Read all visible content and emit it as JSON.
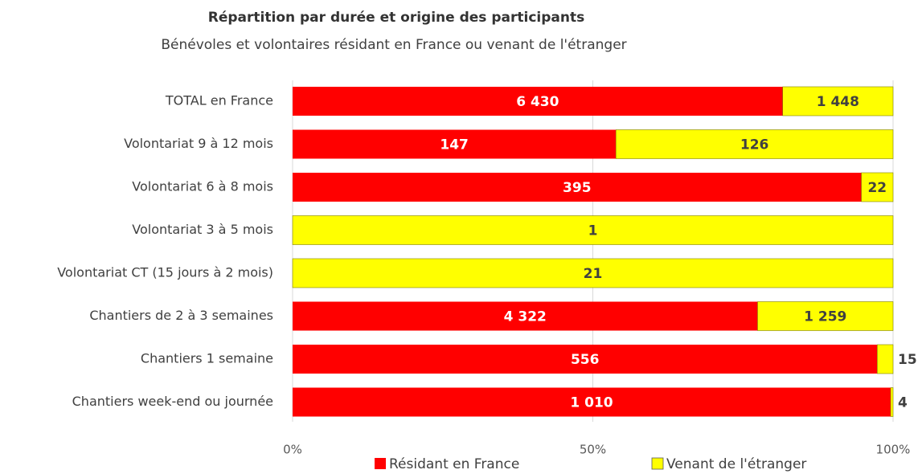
{
  "chart_data": {
    "type": "bar",
    "orientation": "horizontal",
    "stacked": "percent",
    "title": "Répartition par durée et origine des participants",
    "subtitle": "Bénévoles et volontaires résidant en France ou venant de l'étranger",
    "categories": [
      "TOTAL en France",
      "Volontariat 9 à 12 mois",
      "Volontariat 6 à 8 mois",
      "Volontariat 3 à 5 mois ",
      "Volontariat CT  (15 jours à 2 mois)",
      "Chantiers de 2 à 3 semaines ",
      "Chantiers 1 semaine",
      "Chantiers week-end ou journée"
    ],
    "series": [
      {
        "name": "Résidant en France",
        "color": "#ff0000",
        "values": [
          6430,
          147,
          395,
          0,
          0,
          4322,
          556,
          1010
        ],
        "value_labels": [
          "6 430",
          "147",
          "395",
          null,
          null,
          "4 322",
          "556",
          "1 010"
        ]
      },
      {
        "name": "Venant de l'étranger",
        "color": "#ffff00",
        "values": [
          1448,
          126,
          22,
          1,
          21,
          1259,
          15,
          4
        ],
        "value_labels": [
          "1 448",
          "126",
          "22",
          "1",
          "21",
          "1 259",
          "15",
          "4"
        ]
      }
    ],
    "xlim": [
      0,
      100
    ],
    "xticks": [
      {
        "value": 0,
        "label": "0%"
      },
      {
        "value": 50,
        "label": "50%"
      },
      {
        "value": 100,
        "label": "100%"
      }
    ],
    "grid": true,
    "legend": "bottom"
  }
}
